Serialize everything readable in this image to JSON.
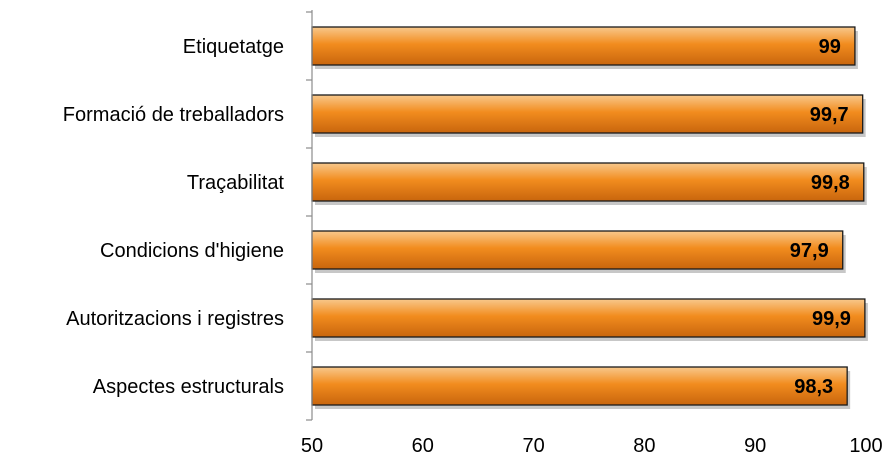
{
  "chart_data": {
    "type": "bar",
    "orientation": "horizontal",
    "title": "",
    "xlabel": "",
    "ylabel": "",
    "categories": [
      "Etiquetatge",
      "Formació de treballadors",
      "Traçabilitat",
      "Condicions d'higiene",
      "Autoritzacions i registres",
      "Aspectes estructurals"
    ],
    "values": [
      99,
      99.7,
      99.8,
      97.9,
      99.9,
      98.3
    ],
    "value_labels": [
      "99",
      "99,7",
      "99,8",
      "97,9",
      "99,9",
      "98,3"
    ],
    "xlim": [
      50,
      100
    ],
    "x_ticks": [
      50,
      60,
      70,
      80,
      90,
      100
    ],
    "x_tick_labels": [
      "50",
      "60",
      "70",
      "80",
      "90",
      "100"
    ],
    "grid": false,
    "legend": "none",
    "colors": {
      "bar_top": "#f8c88c",
      "bar_mid": "#f28c1e",
      "bar_bottom": "#c8650d",
      "bar_edge": "#1a1a1a",
      "axis": "#8c8c8c"
    }
  }
}
